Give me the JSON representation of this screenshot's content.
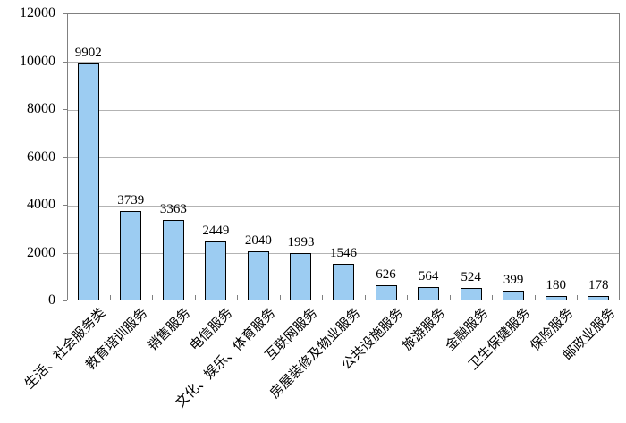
{
  "chart_data": {
    "type": "bar",
    "title": "",
    "xlabel": "",
    "ylabel": "",
    "categories": [
      "生活、社会服务类",
      "教育培训服务",
      "销售服务",
      "电信服务",
      "文化、娱乐、体育服务",
      "互联网服务",
      "房屋装修及物业服务",
      "公共设施服务",
      "旅游服务",
      "金融服务",
      "卫生保健服务",
      "保险服务",
      "邮政业服务"
    ],
    "values": [
      9902,
      3739,
      3363,
      2449,
      2040,
      1993,
      1546,
      626,
      564,
      524,
      399,
      180,
      178
    ],
    "value_labels": [
      "9902",
      "3739",
      "3363",
      "2449",
      "2040",
      "1993",
      "1546",
      "626",
      "564",
      "524",
      "399",
      "180",
      "178"
    ],
    "ylim": [
      0,
      12000
    ],
    "y_ticks": [
      0,
      2000,
      4000,
      6000,
      8000,
      10000,
      12000
    ],
    "y_tick_labels": [
      "0",
      "2000",
      "4000",
      "6000",
      "8000",
      "10000",
      "12000"
    ],
    "grid": "horizontal",
    "legend": "none",
    "bar_color": "#9cccf2",
    "bar_border_color": "#000000",
    "gridline_color": "#b3b3b3",
    "plot_border_color": "#808080"
  }
}
